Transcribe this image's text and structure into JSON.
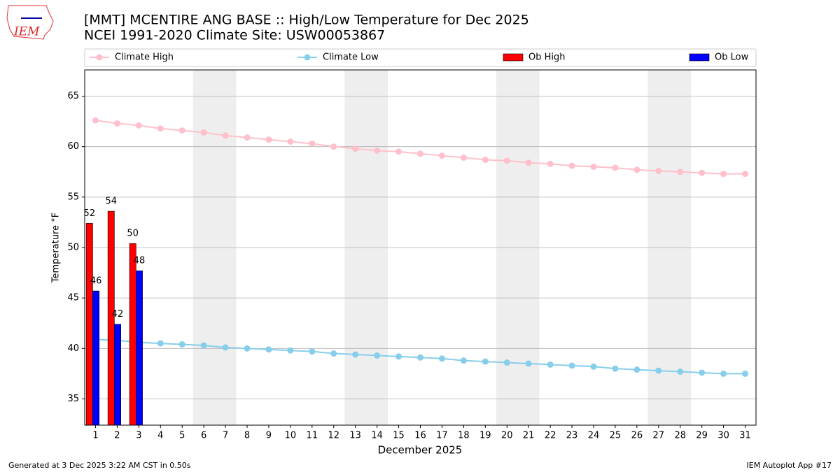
{
  "chart_data": {
    "type": "bar_line",
    "title": "[MMT] MCENTIRE ANG BASE :: High/Low Temperature for Dec 2025",
    "subtitle": "NCEI 1991-2020 Climate Site: USW00053867",
    "logo_text": "IEM",
    "x_label": "December 2025",
    "y_label": "Temperature °F",
    "footer_left": "Generated at 3 Dec 2025 3:22 AM CST in 0.50s",
    "footer_right": "IEM Autoplot App #17",
    "x": [
      1,
      2,
      3,
      4,
      5,
      6,
      7,
      8,
      9,
      10,
      11,
      12,
      13,
      14,
      15,
      16,
      17,
      18,
      19,
      20,
      21,
      22,
      23,
      24,
      25,
      26,
      27,
      28,
      29,
      30,
      31
    ],
    "xlim": [
      0.5,
      31.5
    ],
    "xticks": [
      1,
      2,
      3,
      4,
      5,
      6,
      7,
      8,
      9,
      10,
      11,
      12,
      13,
      14,
      15,
      16,
      17,
      18,
      19,
      20,
      21,
      22,
      23,
      24,
      25,
      26,
      27,
      28,
      29,
      30,
      31
    ],
    "ylim": [
      32.4,
      67.6
    ],
    "yticks": [
      35,
      40,
      45,
      50,
      55,
      60,
      65
    ],
    "grid": true,
    "shaded_spans": [
      [
        5.5,
        7.5
      ],
      [
        12.5,
        14.5
      ],
      [
        19.5,
        21.5
      ],
      [
        26.5,
        28.5
      ]
    ],
    "series": [
      {
        "name": "Climate High",
        "kind": "line",
        "color": "#ffc0cb",
        "values": [
          62.6,
          62.3,
          62.1,
          61.8,
          61.6,
          61.4,
          61.1,
          60.9,
          60.7,
          60.5,
          60.3,
          60.0,
          59.8,
          59.6,
          59.5,
          59.3,
          59.1,
          58.9,
          58.7,
          58.6,
          58.4,
          58.3,
          58.1,
          58.0,
          57.9,
          57.7,
          57.6,
          57.5,
          57.4,
          57.3,
          57.3
        ]
      },
      {
        "name": "Climate Low",
        "kind": "line",
        "color": "#87ceeb",
        "values": [
          40.9,
          40.8,
          40.6,
          40.5,
          40.4,
          40.3,
          40.1,
          40.0,
          39.9,
          39.8,
          39.7,
          39.5,
          39.4,
          39.3,
          39.2,
          39.1,
          39.0,
          38.8,
          38.7,
          38.6,
          38.5,
          38.4,
          38.3,
          38.2,
          38.0,
          37.9,
          37.8,
          37.7,
          37.6,
          37.5,
          37.5
        ]
      },
      {
        "name": "Ob High",
        "kind": "bar",
        "color": "#ff0000",
        "x": [
          1,
          2,
          3
        ],
        "values": [
          52.4,
          53.6,
          50.4
        ],
        "value_labels": [
          "52",
          "54",
          "50"
        ]
      },
      {
        "name": "Ob Low",
        "kind": "bar",
        "color": "#0000ff",
        "x": [
          1,
          2,
          3
        ],
        "values": [
          45.7,
          42.4,
          47.7
        ],
        "value_labels": [
          "46",
          "42",
          "48"
        ]
      }
    ]
  }
}
